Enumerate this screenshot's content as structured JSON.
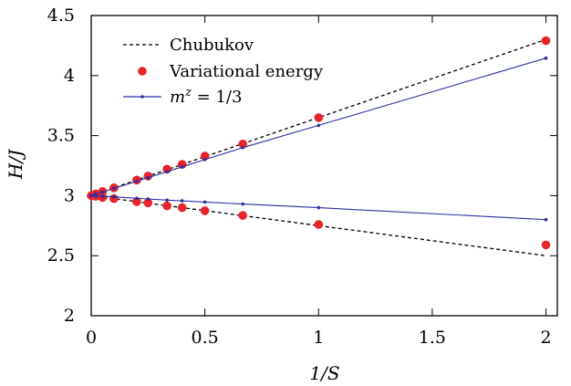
{
  "chart_data": {
    "type": "line",
    "title": "",
    "xlabel": "1/S",
    "ylabel": "H/J",
    "xlim": [
      0,
      2.05
    ],
    "ylim": [
      2,
      4.5
    ],
    "xticks": [
      0,
      0.5,
      1,
      1.5,
      2
    ],
    "yticks": [
      2,
      2.5,
      3,
      3.5,
      4,
      4.5
    ],
    "xtick_labels": [
      "0",
      "0.5",
      "1",
      "1.5",
      "2"
    ],
    "ytick_labels": [
      "2",
      "2.5",
      "3",
      "3.5",
      "4",
      "4.5"
    ],
    "legend_position": "top-left",
    "grid": false,
    "series": [
      {
        "name": "Chubukov",
        "style": "dashed-line",
        "color": "#000000",
        "branches": [
          {
            "x": [
              0,
              2
            ],
            "y": [
              3.0,
              4.3
            ]
          },
          {
            "x": [
              0,
              2
            ],
            "y": [
              3.0,
              2.5
            ]
          }
        ]
      },
      {
        "name": "Variational energy",
        "style": "markers",
        "color": "#e8232a",
        "branches": [
          {
            "x": [
              0,
              0.02,
              0.05,
              0.1,
              0.2,
              0.25,
              0.3333,
              0.4,
              0.5,
              0.6667,
              1.0,
              2.0
            ],
            "y": [
              3.0,
              3.015,
              3.035,
              3.065,
              3.13,
              3.163,
              3.22,
              3.26,
              3.33,
              3.43,
              3.65,
              4.29
            ]
          },
          {
            "x": [
              0.02,
              0.05,
              0.1,
              0.2,
              0.25,
              0.3333,
              0.4,
              0.5,
              0.6667,
              1.0,
              2.0
            ],
            "y": [
              2.995,
              2.985,
              2.975,
              2.95,
              2.94,
              2.915,
              2.9,
              2.875,
              2.835,
              2.76,
              2.59
            ]
          }
        ]
      },
      {
        "name": "m^z = 1/3",
        "style": "line-with-small-markers",
        "color": "#2b2fa0",
        "branches": [
          {
            "x": [
              0,
              0.02,
              0.05,
              0.1,
              0.2,
              0.25,
              0.3333,
              0.4,
              0.5,
              0.6667,
              1.0,
              2.0
            ],
            "y": [
              3.0,
              3.014,
              3.03,
              3.06,
              3.12,
              3.15,
              3.2,
              3.24,
              3.3,
              3.4,
              3.585,
              4.145
            ]
          },
          {
            "x": [
              0,
              0.02,
              0.05,
              0.1,
              0.2,
              0.25,
              0.3333,
              0.4,
              0.5,
              0.6667,
              1.0,
              2.0
            ],
            "y": [
              3.0,
              2.998,
              2.995,
              2.99,
              2.978,
              2.973,
              2.963,
              2.957,
              2.947,
              2.93,
              2.9,
              2.8
            ]
          }
        ]
      }
    ]
  }
}
